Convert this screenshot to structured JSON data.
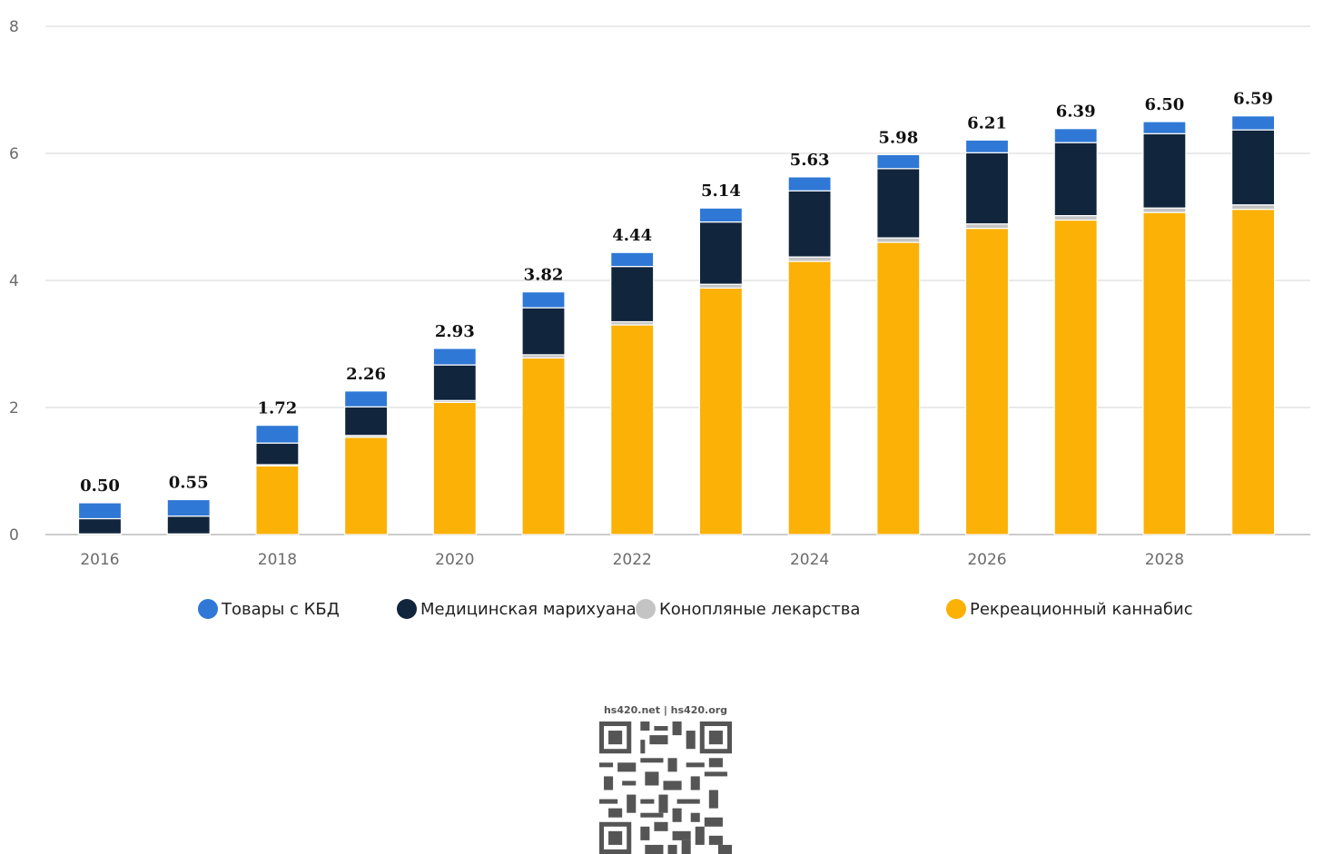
{
  "colors": {
    "cbd": "#2f78d6",
    "medical": "#11253d",
    "hemp": "#c4c4c4",
    "recreational": "#fbb105",
    "grid": "#e3e3e3",
    "axis": "#cccccc"
  },
  "watermark": "hs420.net | hs420.org",
  "chart_data": {
    "type": "bar",
    "stacked": true,
    "categories": [
      "2016",
      "2017",
      "2018",
      "2019",
      "2020",
      "2021",
      "2022",
      "2023",
      "2024",
      "2025",
      "2026",
      "2027",
      "2028",
      "2029"
    ],
    "x_tick_labels": [
      "2016",
      "",
      "2018",
      "",
      "2020",
      "",
      "2022",
      "",
      "2024",
      "",
      "2026",
      "",
      "2028",
      ""
    ],
    "ylim": [
      0,
      8
    ],
    "y_ticks": [
      0,
      2,
      4,
      6,
      8
    ],
    "grid": true,
    "legend_position": "bottom",
    "series": [
      {
        "name": "Рекреационный каннабис",
        "color_key": "recreational",
        "values": [
          0.0,
          0.0,
          1.08,
          1.53,
          2.08,
          2.78,
          3.3,
          3.88,
          4.3,
          4.6,
          4.82,
          4.95,
          5.07,
          5.12
        ]
      },
      {
        "name": "Конопляные лекарства",
        "color_key": "hemp",
        "values": [
          0.01,
          0.01,
          0.02,
          0.03,
          0.03,
          0.05,
          0.05,
          0.06,
          0.07,
          0.07,
          0.07,
          0.07,
          0.07,
          0.07
        ]
      },
      {
        "name": "Медицинская марихуана",
        "color_key": "medical",
        "values": [
          0.24,
          0.28,
          0.34,
          0.45,
          0.56,
          0.74,
          0.87,
          0.98,
          1.04,
          1.09,
          1.12,
          1.15,
          1.17,
          1.18
        ]
      },
      {
        "name": "Товары с КБД",
        "color_key": "cbd",
        "values": [
          0.25,
          0.26,
          0.28,
          0.25,
          0.26,
          0.25,
          0.22,
          0.22,
          0.22,
          0.22,
          0.2,
          0.22,
          0.19,
          0.22
        ]
      }
    ],
    "totals": [
      "0.50",
      "0.55",
      "1.72",
      "2.26",
      "2.93",
      "3.82",
      "4.44",
      "5.14",
      "5.63",
      "5.98",
      "6.21",
      "6.39",
      "6.50",
      "6.59"
    ],
    "legend": [
      {
        "label": "Товары с КБД",
        "color_key": "cbd"
      },
      {
        "label": "Медицинская марихуана",
        "color_key": "medical"
      },
      {
        "label": "Конопляные лекарства",
        "color_key": "hemp"
      },
      {
        "label": "Рекреационный каннабис",
        "color_key": "recreational"
      }
    ]
  }
}
